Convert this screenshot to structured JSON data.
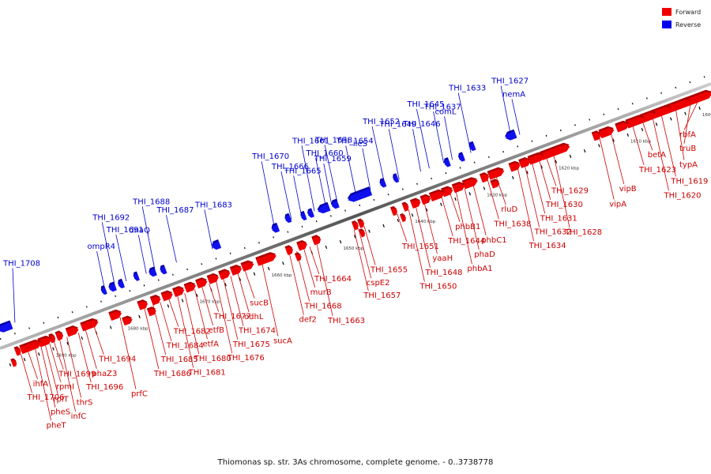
{
  "caption": "Thiomonas sp. str. 3As chromosome, complete genome. - 0..3738778",
  "legend": [
    {
      "label": "Forward",
      "color": "#ee0000"
    },
    {
      "label": "Reverse",
      "color": "#0000ee"
    }
  ],
  "colors": {
    "forward": "#ee0000",
    "forward_dark": "#aa0000",
    "reverse": "#1010ee",
    "reverse_dark": "#0000aa",
    "forward_label": "#cc0000",
    "reverse_label": "#0000cc",
    "axis": "#888888"
  },
  "scale_labels": [
    {
      "text": "1600 kbp",
      "kbp": 1600
    },
    {
      "text": "1610 kbp",
      "kbp": 1610
    },
    {
      "text": "1620 kbp",
      "kbp": 1620
    },
    {
      "text": "1630 kbp",
      "kbp": 1630
    },
    {
      "text": "1640 kbp",
      "kbp": 1640
    },
    {
      "text": "1650 kbp",
      "kbp": 1650
    },
    {
      "text": "1660 kbp",
      "kbp": 1660
    },
    {
      "text": "1670 kbp",
      "kbp": 1670
    },
    {
      "text": "1680 kbp",
      "kbp": 1680
    },
    {
      "text": "1690 kbp",
      "kbp": 1690
    }
  ],
  "reverse_genes": [
    {
      "name": "nemA",
      "kbp": 1624.2
    },
    {
      "name": "THI_1627",
      "kbp": 1625.4
    },
    {
      "name": "THI_1633",
      "kbp": 1631.0
    },
    {
      "name": "comL",
      "kbp": 1633.6
    },
    {
      "name": "THI_1637",
      "kbp": 1634.8
    },
    {
      "name": "THI_1645",
      "kbp": 1636.8
    },
    {
      "name": "THI_1646",
      "kbp": 1638.0
    },
    {
      "name": "THI_1649",
      "kbp": 1641.0
    },
    {
      "name": "THI_1652",
      "kbp": 1643.0
    },
    {
      "name": "ileS",
      "kbp": 1645.0
    },
    {
      "name": "THI_1654",
      "kbp": 1647.0
    },
    {
      "name": "THI_1658",
      "kbp": 1649.6
    },
    {
      "name": "THI_1659",
      "kbp": 1650.4
    },
    {
      "name": "THI_1660",
      "kbp": 1651.2
    },
    {
      "name": "THI_1661",
      "kbp": 1652.8
    },
    {
      "name": "THI_1665",
      "kbp": 1654.6
    },
    {
      "name": "THI_1666",
      "kbp": 1656.0
    },
    {
      "name": "THI_1670",
      "kbp": 1658.4
    },
    {
      "name": "THI_1683",
      "kbp": 1667.0
    },
    {
      "name": "THI_1687",
      "kbp": 1672.0
    },
    {
      "name": "THI_1688",
      "kbp": 1675.0
    },
    {
      "name": "dnaQ",
      "kbp": 1676.2
    },
    {
      "name": "THI_1691",
      "kbp": 1679.0
    },
    {
      "name": "THI_1692",
      "kbp": 1680.6
    },
    {
      "name": "ompR4",
      "kbp": 1682.0
    },
    {
      "name": "THI_1708",
      "kbp": 1694.5
    }
  ],
  "forward_genes": [
    {
      "name": "rbfA",
      "kbp": 1601.0
    },
    {
      "name": "truB",
      "kbp": 1602.0
    },
    {
      "name": "typA",
      "kbp": 1604.0
    },
    {
      "name": "THI_1619",
      "kbp": 1606.0
    },
    {
      "name": "THI_1620",
      "kbp": 1607.2
    },
    {
      "name": "betA",
      "kbp": 1608.6
    },
    {
      "name": "THI_1623",
      "kbp": 1610.0
    },
    {
      "name": "vipB",
      "kbp": 1613.0
    },
    {
      "name": "vipA",
      "kbp": 1614.6
    },
    {
      "name": "THI_1628",
      "kbp": 1621.0
    },
    {
      "name": "THI_1629",
      "kbp": 1622.0
    },
    {
      "name": "THI_1630",
      "kbp": 1623.0
    },
    {
      "name": "THI_1631",
      "kbp": 1624.0
    },
    {
      "name": "THI_1632",
      "kbp": 1625.0
    },
    {
      "name": "THI_1634",
      "kbp": 1626.0
    },
    {
      "name": "rluD",
      "kbp": 1629.0
    },
    {
      "name": "THI_1638",
      "kbp": 1630.2
    },
    {
      "name": "phbC1",
      "kbp": 1632.2
    },
    {
      "name": "phaD",
      "kbp": 1633.4
    },
    {
      "name": "phbA1",
      "kbp": 1634.6
    },
    {
      "name": "phbB1",
      "kbp": 1635.4
    },
    {
      "name": "THI_1644",
      "kbp": 1636.6
    },
    {
      "name": "yaaH",
      "kbp": 1639.0
    },
    {
      "name": "THI_1648",
      "kbp": 1640.2
    },
    {
      "name": "THI_1650",
      "kbp": 1641.2
    },
    {
      "name": "THI_1651",
      "kbp": 1642.8
    },
    {
      "name": "THI_1655",
      "kbp": 1647.4
    },
    {
      "name": "cspE2",
      "kbp": 1648.2
    },
    {
      "name": "THI_1657",
      "kbp": 1648.8
    },
    {
      "name": "THI_1663",
      "kbp": 1654.0
    },
    {
      "name": "THI_1664",
      "kbp": 1655.0
    },
    {
      "name": "murB",
      "kbp": 1655.8
    },
    {
      "name": "THI_1668",
      "kbp": 1656.8
    },
    {
      "name": "def2",
      "kbp": 1657.8
    },
    {
      "name": "sucA",
      "kbp": 1661.6
    },
    {
      "name": "sucB",
      "kbp": 1664.0
    },
    {
      "name": "odhL",
      "kbp": 1665.0
    },
    {
      "name": "THI_1674",
      "kbp": 1666.0
    },
    {
      "name": "THI_1675",
      "kbp": 1667.0
    },
    {
      "name": "THI_1676",
      "kbp": 1668.0
    },
    {
      "name": "THI_1677",
      "kbp": 1669.0
    },
    {
      "name": "etfB",
      "kbp": 1670.0
    },
    {
      "name": "etfA",
      "kbp": 1671.0
    },
    {
      "name": "THI_1680",
      "kbp": 1672.4
    },
    {
      "name": "THI_1681",
      "kbp": 1673.4
    },
    {
      "name": "THI_1682",
      "kbp": 1674.6
    },
    {
      "name": "THI_1684",
      "kbp": 1675.8
    },
    {
      "name": "THI_1685",
      "kbp": 1676.8
    },
    {
      "name": "THI_1686",
      "kbp": 1678.0
    },
    {
      "name": "prfC",
      "kbp": 1681.4
    },
    {
      "name": "THI_1694",
      "kbp": 1685.0
    },
    {
      "name": "phaZ3",
      "kbp": 1686.2
    },
    {
      "name": "THI_1696",
      "kbp": 1687.2
    },
    {
      "name": "thrS",
      "kbp": 1688.8
    },
    {
      "name": "infC",
      "kbp": 1689.8
    },
    {
      "name": "THI_1699",
      "kbp": 1690.6
    },
    {
      "name": "rpmI",
      "kbp": 1691.2
    },
    {
      "name": "rplT",
      "kbp": 1691.8
    },
    {
      "name": "pheS",
      "kbp": 1692.4
    },
    {
      "name": "pheT",
      "kbp": 1693.2
    },
    {
      "name": "ihfA",
      "kbp": 1694.2
    },
    {
      "name": "THI_1706",
      "kbp": 1695.2
    }
  ]
}
